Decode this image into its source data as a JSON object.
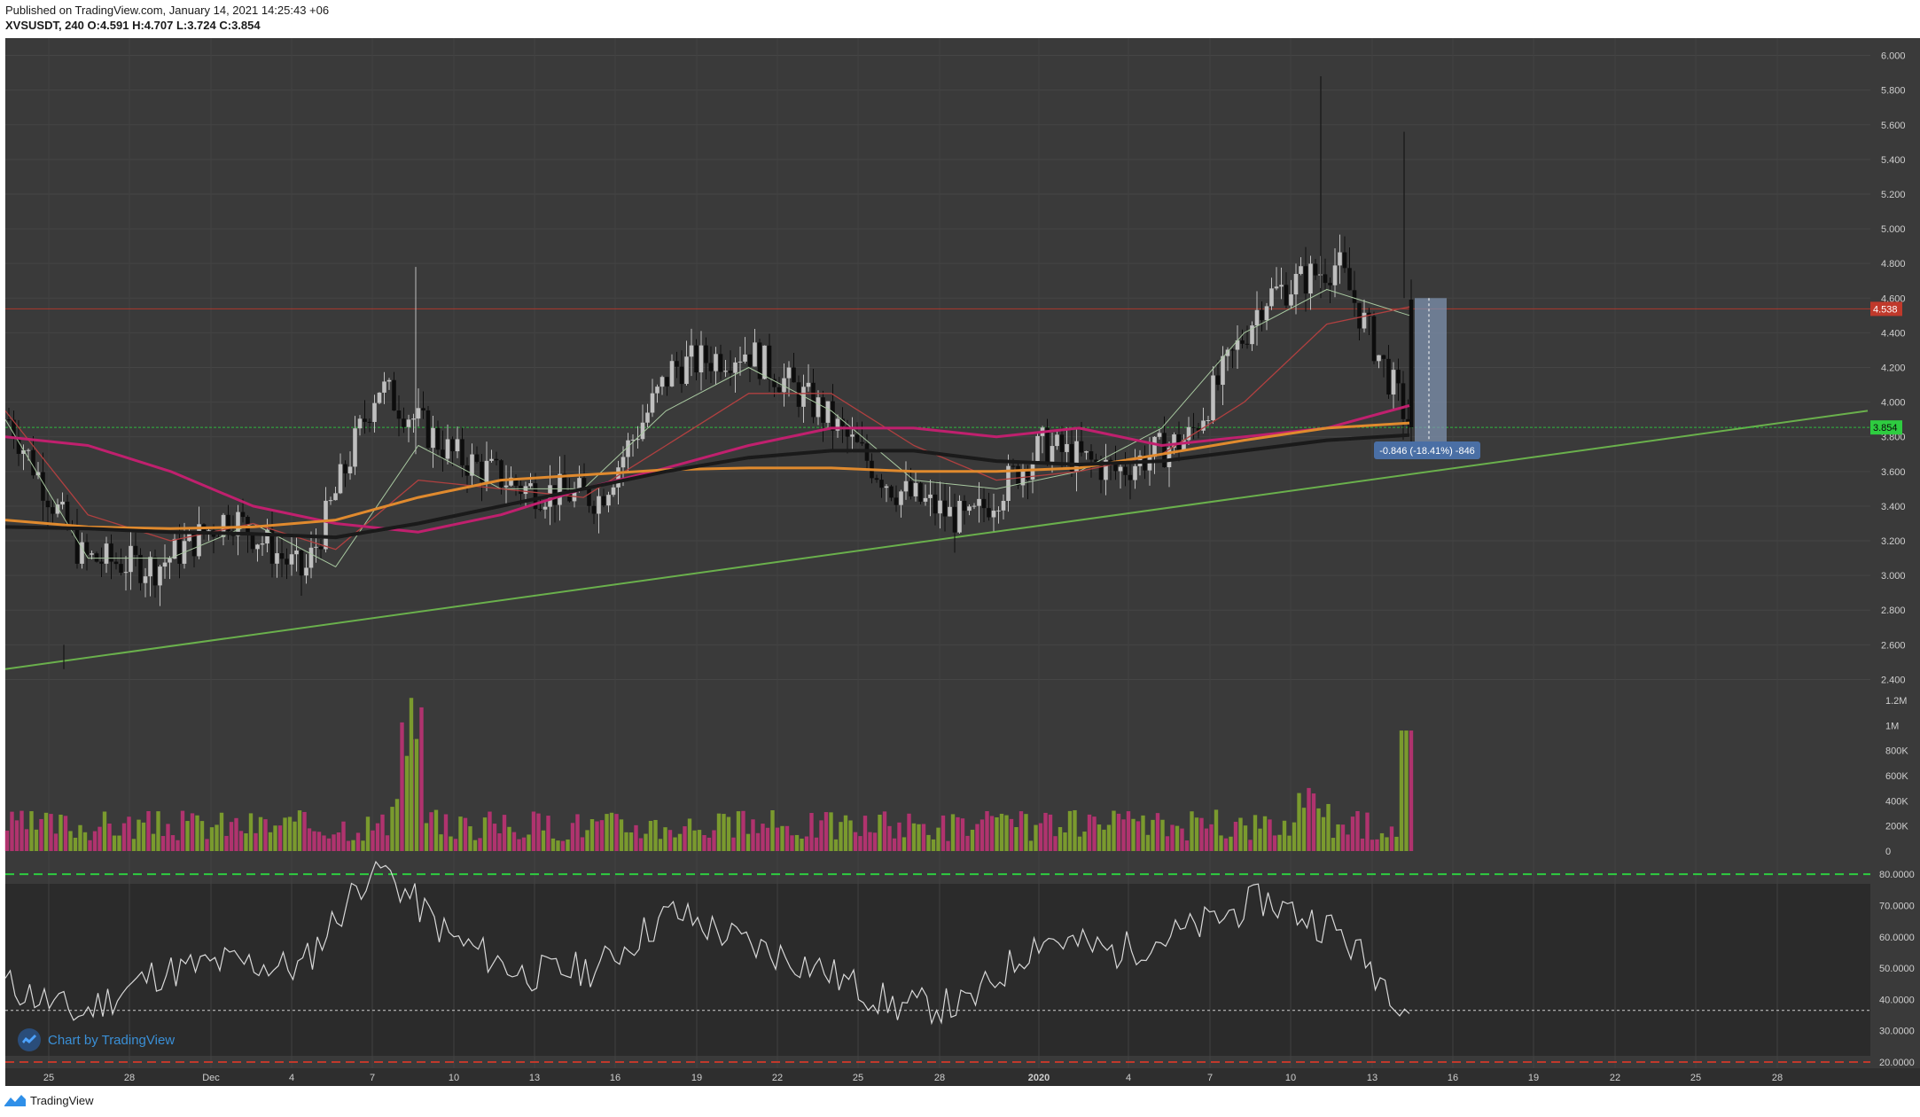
{
  "header": {
    "published": "Published on TradingView.com, January 14, 2021 14:25:43 +06",
    "symbol": "XVSUSDT, 240",
    "ohlc": "O:4.591 H:4.707 L:3.724 C:3.854"
  },
  "watermark": "Chart by TradingView",
  "footer_brand": "TradingView",
  "colors": {
    "background": "#ffffff",
    "pane": "#3a3a3a",
    "rsi_band": "#2b2b2b",
    "up_candle": "#bfbfbf",
    "down_candle": "#0d0d0d",
    "vol_up": "#7a9a2e",
    "vol_down": "#b0336e",
    "ma_fast": "#a8c8a0",
    "ma_red": "#b04040",
    "ma_magenta": "#c0206e",
    "ma_orange": "#e08a2e",
    "ma_black": "#1a1a1a",
    "trendline": "#6ab04c",
    "resistance_line": "#c0392b",
    "current_line": "#2ecc40",
    "measure_box": "#7f93b0"
  },
  "chart_data": [
    {
      "type": "candlestick",
      "pane": "price",
      "symbol": "XVSUSDT",
      "interval": "240",
      "open": 4.591,
      "high": 4.707,
      "low": 3.724,
      "close": 3.854,
      "y_ticks": [
        "6.000",
        "5.800",
        "5.600",
        "5.400",
        "5.200",
        "5.000",
        "4.800",
        "4.600",
        "4.400",
        "4.200",
        "4.000",
        "3.800",
        "3.600",
        "3.400",
        "3.200",
        "3.000",
        "2.800",
        "2.600",
        "2.400"
      ],
      "ylim": [
        2.3,
        6.1
      ],
      "x_ticks": [
        "25",
        "28",
        "Dec",
        "4",
        "7",
        "10",
        "13",
        "16",
        "19",
        "22",
        "25",
        "28",
        "2020",
        "4",
        "7",
        "10",
        "13",
        "16",
        "19",
        "22",
        "25",
        "28"
      ],
      "levels": [
        {
          "label": "4.538",
          "value": 4.538,
          "color": "#c0392b"
        },
        {
          "label": "3.854",
          "value": 3.854,
          "color": "#2ecc40"
        }
      ],
      "measure_label": "-0.846 (-18.41%) -846",
      "approx_close_path": [
        [
          "25",
          3.9
        ],
        [
          "28",
          3.1
        ],
        [
          "Dec",
          3.05
        ],
        [
          "4",
          3.35
        ],
        [
          "7",
          3.0
        ],
        [
          "8",
          4.1
        ],
        [
          "10",
          3.7
        ],
        [
          "13",
          3.5
        ],
        [
          "16",
          3.45
        ],
        [
          "19",
          4.2
        ],
        [
          "22",
          4.3
        ],
        [
          "25",
          3.95
        ],
        [
          "28",
          3.5
        ],
        [
          "2020",
          3.3
        ],
        [
          "1",
          3.75
        ],
        [
          "4",
          3.6
        ],
        [
          "7",
          3.8
        ],
        [
          "10",
          4.6
        ],
        [
          "13",
          4.8
        ],
        [
          "14",
          3.854
        ]
      ],
      "moving_averages": [
        {
          "color": "#a8c8a0",
          "points": [
            [
              "25",
              3.9
            ],
            [
              "28",
              3.1
            ],
            [
              "Dec",
              3.1
            ],
            [
              "4",
              3.3
            ],
            [
              "7",
              3.05
            ],
            [
              "10",
              3.75
            ],
            [
              "13",
              3.5
            ],
            [
              "16",
              3.5
            ],
            [
              "19",
              3.95
            ],
            [
              "22",
              4.2
            ],
            [
              "25",
              3.95
            ],
            [
              "28",
              3.55
            ],
            [
              "2020",
              3.5
            ],
            [
              "4",
              3.6
            ],
            [
              "7",
              3.85
            ],
            [
              "10",
              4.4
            ],
            [
              "13",
              4.65
            ],
            [
              "14",
              4.5
            ]
          ]
        },
        {
          "color": "#b04040",
          "points": [
            [
              "25",
              3.95
            ],
            [
              "28",
              3.35
            ],
            [
              "Dec",
              3.2
            ],
            [
              "4",
              3.3
            ],
            [
              "7",
              3.15
            ],
            [
              "10",
              3.55
            ],
            [
              "13",
              3.5
            ],
            [
              "16",
              3.45
            ],
            [
              "19",
              3.75
            ],
            [
              "22",
              4.05
            ],
            [
              "25",
              4.05
            ],
            [
              "28",
              3.75
            ],
            [
              "2020",
              3.55
            ],
            [
              "4",
              3.6
            ],
            [
              "7",
              3.7
            ],
            [
              "10",
              4.0
            ],
            [
              "13",
              4.45
            ],
            [
              "14",
              4.55
            ]
          ]
        },
        {
          "color": "#c0206e",
          "points": [
            [
              "25",
              3.8
            ],
            [
              "28",
              3.75
            ],
            [
              "Dec",
              3.6
            ],
            [
              "4",
              3.4
            ],
            [
              "7",
              3.3
            ],
            [
              "10",
              3.25
            ],
            [
              "13",
              3.35
            ],
            [
              "16",
              3.5
            ],
            [
              "19",
              3.62
            ],
            [
              "22",
              3.75
            ],
            [
              "25",
              3.85
            ],
            [
              "28",
              3.85
            ],
            [
              "2020",
              3.8
            ],
            [
              "4",
              3.85
            ],
            [
              "7",
              3.75
            ],
            [
              "10",
              3.8
            ],
            [
              "13",
              3.85
            ],
            [
              "14",
              3.98
            ]
          ]
        },
        {
          "color": "#e08a2e",
          "points": [
            [
              "25",
              3.32
            ],
            [
              "28",
              3.28
            ],
            [
              "Dec",
              3.27
            ],
            [
              "4",
              3.28
            ],
            [
              "7",
              3.32
            ],
            [
              "10",
              3.45
            ],
            [
              "13",
              3.55
            ],
            [
              "16",
              3.58
            ],
            [
              "19",
              3.61
            ],
            [
              "22",
              3.62
            ],
            [
              "25",
              3.62
            ],
            [
              "28",
              3.6
            ],
            [
              "2020",
              3.6
            ],
            [
              "4",
              3.62
            ],
            [
              "7",
              3.7
            ],
            [
              "10",
              3.78
            ],
            [
              "13",
              3.85
            ],
            [
              "14",
              3.88
            ]
          ]
        },
        {
          "color": "#1a1a1a",
          "points": [
            [
              "25",
              3.28
            ],
            [
              "28",
              3.27
            ],
            [
              "Dec",
              3.25
            ],
            [
              "4",
              3.24
            ],
            [
              "7",
              3.22
            ],
            [
              "10",
              3.3
            ],
            [
              "13",
              3.4
            ],
            [
              "16",
              3.5
            ],
            [
              "19",
              3.6
            ],
            [
              "22",
              3.68
            ],
            [
              "25",
              3.72
            ],
            [
              "28",
              3.72
            ],
            [
              "2020",
              3.66
            ],
            [
              "4",
              3.64
            ],
            [
              "7",
              3.66
            ],
            [
              "10",
              3.72
            ],
            [
              "13",
              3.78
            ],
            [
              "14",
              3.81
            ]
          ]
        }
      ],
      "trendline": [
        [
          "25",
          2.46
        ],
        [
          "28_2020",
          3.95
        ]
      ]
    },
    {
      "type": "bar",
      "pane": "volume",
      "y_ticks": [
        "1.2M",
        "1M",
        "800K",
        "600K",
        "400K",
        "200K",
        "0"
      ],
      "ylim": [
        0,
        1250000
      ],
      "peak_up": 1220000,
      "peak_down": 960000
    },
    {
      "type": "line",
      "pane": "rsi",
      "y_ticks": [
        "80.0000",
        "70.0000",
        "60.0000",
        "50.0000",
        "40.0000",
        "30.0000",
        "20.0000"
      ],
      "ylim": [
        18,
        86
      ],
      "upper_band": 80,
      "lower_band": 20,
      "current_level": 36.5,
      "approx_values": [
        [
          "25",
          45
        ],
        [
          "28",
          35
        ],
        [
          "Dec",
          48
        ],
        [
          "4",
          52
        ],
        [
          "7",
          50
        ],
        [
          "8",
          84
        ],
        [
          "10",
          60
        ],
        [
          "13",
          48
        ],
        [
          "16",
          50
        ],
        [
          "19",
          68
        ],
        [
          "22",
          58
        ],
        [
          "25",
          50
        ],
        [
          "28",
          38
        ],
        [
          "2020",
          38
        ],
        [
          "1",
          60
        ],
        [
          "4",
          55
        ],
        [
          "7",
          62
        ],
        [
          "10",
          72
        ],
        [
          "13",
          62
        ],
        [
          "14",
          36.5
        ]
      ]
    }
  ]
}
